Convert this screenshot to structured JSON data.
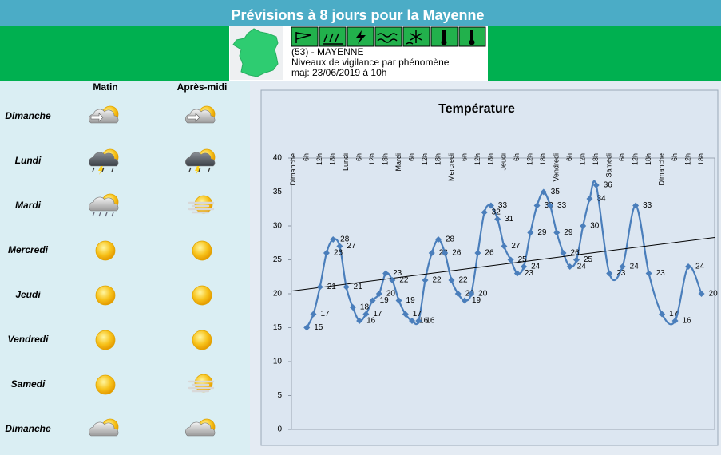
{
  "header": {
    "title": "Prévisions à 8 jours pour la Mayenne"
  },
  "vigilance": {
    "department": "(53) - MAYENNE",
    "subtitle": "Niveaux de vigilance par phénomène",
    "updated": "maj: 23/06/2019 à 10h"
  },
  "forecast": {
    "columns": [
      "Matin",
      "Après-midi"
    ],
    "days": [
      "Dimanche",
      "Lundi",
      "Mardi",
      "Mercredi",
      "Jeudi",
      "Vendredi",
      "Samedi",
      "Dimanche"
    ]
  },
  "chart_data": {
    "type": "line",
    "title": "Température",
    "color": "#4a7ebb",
    "x": [
      6,
      9,
      12,
      15,
      18,
      21,
      24,
      27,
      30,
      33,
      36,
      39,
      42,
      45,
      48,
      51,
      54,
      57,
      60,
      63,
      66,
      69,
      72,
      75,
      78,
      81,
      84,
      87,
      90,
      93,
      96,
      99,
      102,
      105,
      108,
      111,
      114,
      117,
      120,
      123,
      126,
      129,
      132,
      135,
      138,
      144,
      150,
      156,
      162,
      168,
      174,
      180,
      186
    ],
    "values": [
      15,
      17,
      21,
      26,
      28,
      27,
      21,
      18,
      16,
      17,
      19,
      20,
      23,
      22,
      19,
      17,
      16,
      16,
      22,
      26,
      28,
      26,
      22,
      20,
      19,
      20,
      26,
      32,
      33,
      31,
      27,
      25,
      23,
      24,
      29,
      33,
      35,
      33,
      29,
      26,
      24,
      25,
      30,
      34,
      36,
      23,
      24,
      33,
      23,
      17,
      16,
      24,
      20
    ],
    "trendline": {
      "x": [
        -1,
        192
      ],
      "values": [
        20.4,
        28.3
      ],
      "color": "#000000"
    },
    "xlim": [
      -1,
      192
    ],
    "ylim": [
      0,
      40
    ],
    "yticks": [
      0,
      5,
      10,
      15,
      20,
      25,
      30,
      35,
      40
    ],
    "xticks": [
      {
        "value": 0,
        "label": "Dimanche"
      },
      {
        "value": 6,
        "label": "6h"
      },
      {
        "value": 12,
        "label": "12h"
      },
      {
        "value": 18,
        "label": "18h"
      },
      {
        "value": 24,
        "label": "Lundi"
      },
      {
        "value": 30,
        "label": "6h"
      },
      {
        "value": 36,
        "label": "12h"
      },
      {
        "value": 42,
        "label": "18h"
      },
      {
        "value": 48,
        "label": "Mardi"
      },
      {
        "value": 54,
        "label": "6h"
      },
      {
        "value": 60,
        "label": "12h"
      },
      {
        "value": 66,
        "label": "18h"
      },
      {
        "value": 72,
        "label": "Mercredi"
      },
      {
        "value": 78,
        "label": "6h"
      },
      {
        "value": 84,
        "label": "12h"
      },
      {
        "value": 90,
        "label": "18h"
      },
      {
        "value": 96,
        "label": "Jeudi"
      },
      {
        "value": 102,
        "label": "6h"
      },
      {
        "value": 108,
        "label": "12h"
      },
      {
        "value": 114,
        "label": "18h"
      },
      {
        "value": 120,
        "label": "Vendredi"
      },
      {
        "value": 126,
        "label": "6h"
      },
      {
        "value": 132,
        "label": "12h"
      },
      {
        "value": 138,
        "label": "18h"
      },
      {
        "value": 144,
        "label": "Samedi"
      },
      {
        "value": 150,
        "label": "6h"
      },
      {
        "value": 156,
        "label": "12h"
      },
      {
        "value": 162,
        "label": "18h"
      },
      {
        "value": 168,
        "label": "Dimanche"
      },
      {
        "value": 174,
        "label": "6h"
      },
      {
        "value": 180,
        "label": "12h"
      },
      {
        "value": 186,
        "label": "18h"
      }
    ]
  }
}
